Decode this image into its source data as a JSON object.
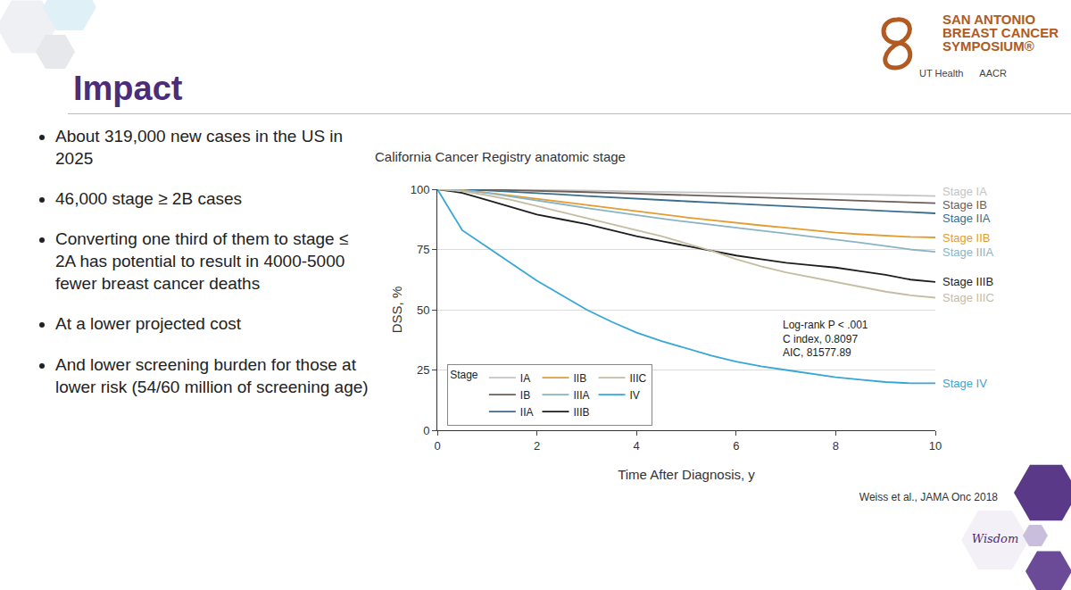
{
  "slide": {
    "title": "Impact",
    "bullets": [
      "About 319,000 new cases in the US in 2025",
      "46,000 stage ≥ 2B cases",
      "Converting one third of them to stage ≤ 2A has potential to result in 4000-5000 fewer breast cancer deaths",
      "At a lower projected cost",
      "And lower screening burden for those at lower risk (54/60 million of screening age)"
    ],
    "logo": [
      "SAN ANTONIO",
      "BREAST CANCER",
      "SYMPOSIUM®"
    ],
    "partners": [
      "UT Health",
      "AACR"
    ],
    "citation": "Weiss et al., JAMA Onc 2018",
    "footer": "Wisdom"
  },
  "chart_data": {
    "type": "line",
    "title": "California Cancer Registry anatomic stage",
    "x_label": "Time After Diagnosis, y",
    "y_label": "DSS, %",
    "x": [
      0,
      0.5,
      1,
      1.5,
      2,
      2.5,
      3,
      3.5,
      4,
      4.5,
      5,
      5.5,
      6,
      6.5,
      7,
      7.5,
      8,
      8.5,
      9,
      9.5,
      10
    ],
    "series": [
      {
        "name": "IA",
        "end_label": "Stage IA",
        "color": "#c4c4c4",
        "values": [
          100,
          100,
          100,
          99.9,
          99.7,
          99.6,
          99.4,
          99.3,
          99,
          98.9,
          98.7,
          98.6,
          98.5,
          98.4,
          98.3,
          98.1,
          98,
          97.8,
          97.6,
          97.3,
          97.2
        ]
      },
      {
        "name": "IB",
        "end_label": "Stage IB",
        "color": "#6b5f57",
        "values": [
          100,
          100,
          99.8,
          99.6,
          99.4,
          99.1,
          98.8,
          98.5,
          98.2,
          97.9,
          97.6,
          97.3,
          97,
          96.7,
          96.4,
          96,
          95.6,
          95.2,
          94.8,
          94.4,
          94.2
        ]
      },
      {
        "name": "IIA",
        "end_label": "Stage IIA",
        "color": "#3b6d8c",
        "values": [
          100,
          99.9,
          99.5,
          99,
          98.4,
          97.8,
          97.2,
          96.6,
          96,
          95.5,
          95,
          94.5,
          94,
          93.5,
          93,
          92.5,
          92,
          91.5,
          91,
          90.5,
          90
        ]
      },
      {
        "name": "IIB",
        "end_label": "Stage IIB",
        "color": "#e59c2f",
        "values": [
          100,
          99.7,
          98.6,
          97.4,
          96,
          94.8,
          93.5,
          92.2,
          90.8,
          89.5,
          88.3,
          87.2,
          86,
          85,
          84,
          83,
          82,
          81.3,
          80.7,
          80.2,
          80
        ]
      },
      {
        "name": "IIIA",
        "end_label": "Stage IIIA",
        "color": "#8ab4c6",
        "values": [
          100,
          99.6,
          98.5,
          97,
          95.5,
          93.8,
          92.2,
          90.7,
          89.2,
          87.8,
          86.5,
          85.2,
          84,
          82.8,
          81.6,
          80.4,
          79.2,
          77.8,
          76.4,
          75,
          74
        ]
      },
      {
        "name": "IIIB",
        "end_label": "Stage IIIB",
        "color": "#1e1e1e",
        "values": [
          100,
          98.5,
          95.5,
          92.5,
          89.5,
          87.5,
          85.5,
          83,
          80.5,
          78.5,
          76.5,
          74.5,
          72.5,
          71,
          69.5,
          68.5,
          67.5,
          66,
          64.5,
          62.5,
          61.5
        ]
      },
      {
        "name": "IIIC",
        "end_label": "Stage IIIC",
        "color": "#c6bca2",
        "values": [
          100,
          99.2,
          97.5,
          95.5,
          93,
          90.5,
          88,
          85.5,
          83,
          80.5,
          77.5,
          74.5,
          71,
          68,
          65.5,
          63.5,
          61.5,
          59.5,
          57.5,
          56,
          55
        ]
      },
      {
        "name": "IV",
        "end_label": "Stage IV",
        "color": "#38a6d6",
        "values": [
          100,
          83,
          76,
          69,
          62,
          56,
          50,
          45,
          40.5,
          37,
          34,
          31,
          28.5,
          26.5,
          25,
          23.5,
          22,
          21,
          20,
          19.5,
          19.5
        ]
      }
    ],
    "xlim": [
      0,
      10
    ],
    "ylim": [
      0,
      100
    ],
    "xticks": [
      0,
      2,
      4,
      6,
      8,
      10
    ],
    "yticks": [
      0,
      25,
      50,
      75,
      100
    ],
    "grid": true,
    "legend": "lower left",
    "legend_title": "Stage",
    "annotations": [
      "Log-rank P < .001",
      "C index, 0.8097",
      "AIC, 81577.89"
    ]
  }
}
